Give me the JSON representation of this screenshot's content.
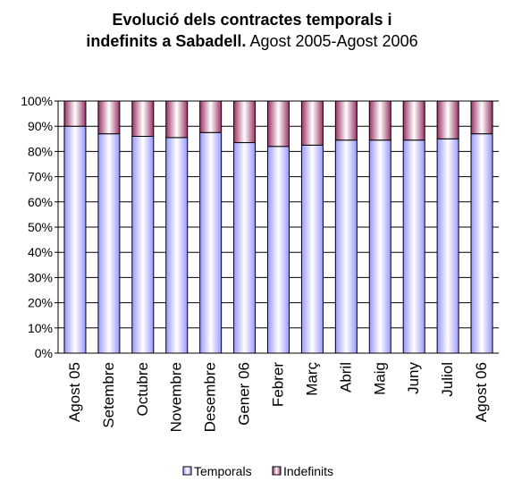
{
  "chart_data": {
    "type": "stacked_bar",
    "title": "Evolució dels contractes temporals i indefinits a Sabadell.",
    "subtitle": "Agost 2005-Agost 2006",
    "categories": [
      "Agost 05",
      "Setembre",
      "Octubre",
      "Novembre",
      "Desembre",
      "Gener 06",
      "Febrer",
      "Març",
      "Abril",
      "Maig",
      "Juny",
      "Juliol",
      "Agost 06"
    ],
    "series": [
      {
        "name": "Temporals",
        "color": "#9999ff",
        "values": [
          90,
          87,
          86,
          85.5,
          87.5,
          83.5,
          82,
          82.5,
          84.5,
          84.5,
          84.5,
          85,
          87
        ]
      },
      {
        "name": "Indefinits",
        "color": "#993366",
        "values": [
          10,
          13,
          14,
          14.5,
          12.5,
          16.5,
          18,
          17.5,
          15.5,
          15.5,
          15.5,
          15,
          13
        ]
      }
    ],
    "ylim": [
      0,
      100
    ],
    "yticks": [
      {
        "value": 0,
        "label": "0%"
      },
      {
        "value": 10,
        "label": "10%"
      },
      {
        "value": 20,
        "label": "20%"
      },
      {
        "value": 30,
        "label": "30%"
      },
      {
        "value": 40,
        "label": "40%"
      },
      {
        "value": 50,
        "label": "50%"
      },
      {
        "value": 60,
        "label": "60%"
      },
      {
        "value": 70,
        "label": "70%"
      },
      {
        "value": 80,
        "label": "80%"
      },
      {
        "value": 90,
        "label": "90%"
      },
      {
        "value": 100,
        "label": "100%"
      }
    ],
    "grid": true,
    "legend": "bottom"
  }
}
